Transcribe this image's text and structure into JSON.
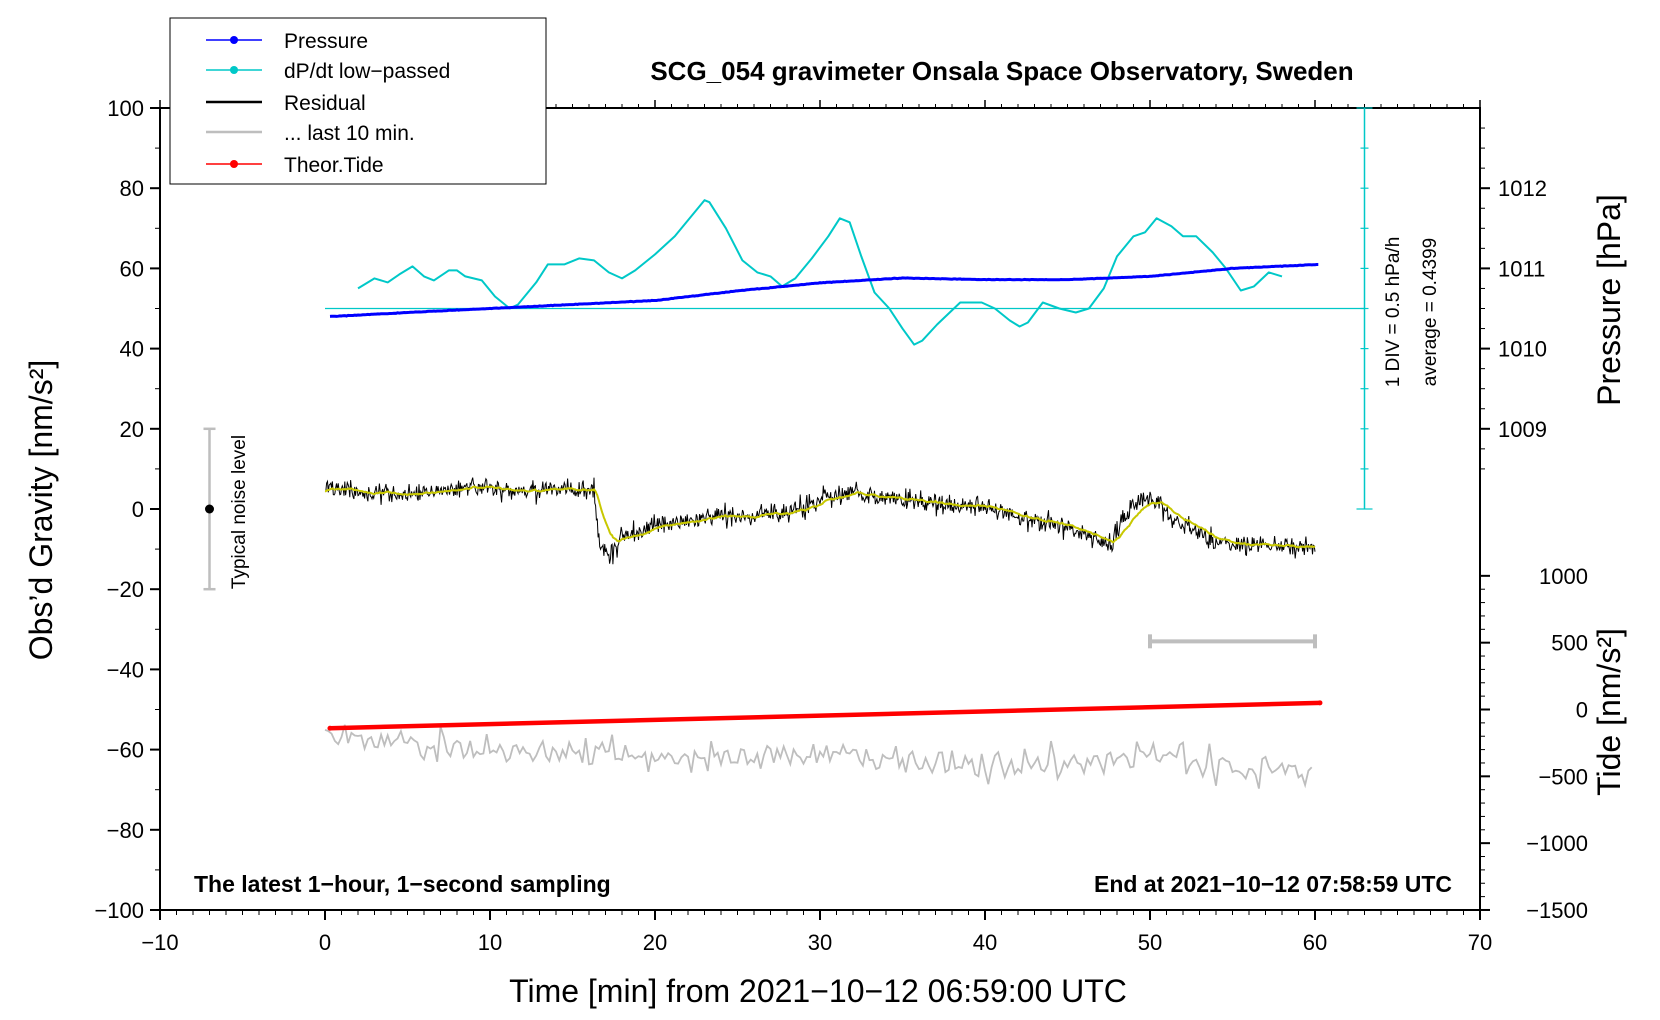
{
  "chart_data": {
    "type": "line",
    "title": "SCG_054 gravimeter Onsala Space Observatory, Sweden",
    "xlabel": "Time [min] from 2021−10−12 06:59:00 UTC",
    "ylabel_left": "Obs’d Gravity [nm/s²]",
    "ylabel_right_top": "Pressure [hPa]",
    "ylabel_right_bottom": "Tide [nm/s²]",
    "xlim": [
      -10,
      70
    ],
    "ylim": [
      -100,
      100
    ],
    "x_ticks": [
      -10,
      0,
      10,
      20,
      30,
      40,
      50,
      60,
      70
    ],
    "x_tick_labels": [
      "−10",
      "0",
      "10",
      "20",
      "30",
      "40",
      "50",
      "60",
      "70"
    ],
    "y_ticks": [
      -100,
      -80,
      -60,
      -40,
      -20,
      0,
      20,
      40,
      60,
      80,
      100
    ],
    "y_tick_labels": [
      "−100",
      "−80",
      "−60",
      "−40",
      "−20",
      "0",
      "20",
      "40",
      "60",
      "80",
      "100"
    ],
    "pressure_axis": {
      "ticks": [
        1009,
        1010,
        1011,
        1012
      ],
      "tick_labels": [
        "1009",
        "1010",
        "1011",
        "1012"
      ],
      "gravity_at_1010": 40,
      "gravity_per_hPa": 20
    },
    "tide_axis": {
      "ticks": [
        -1500,
        -1000,
        -500,
        0,
        500,
        1000
      ],
      "tick_labels": [
        "−1500",
        "−1000",
        "−500",
        "0",
        "500",
        "1000"
      ],
      "gravity_at_0": -50,
      "gravity_per_1000": 33.33
    },
    "legend": [
      {
        "label": "Pressure",
        "color": "#0000ff",
        "marker": true
      },
      {
        "label": "dP/dt low−passed",
        "color": "#00c8c8",
        "marker": true
      },
      {
        "label": "Residual",
        "color": "#000000",
        "marker": false
      },
      {
        "label": "... last 10 min.",
        "color": "#bebebe",
        "marker": false
      },
      {
        "label": "Theor.Tide",
        "color": "#ff0000",
        "marker": true
      }
    ],
    "series": [
      {
        "name": "Pressure",
        "unit": "hPa",
        "color": "#0000ff",
        "x": [
          0.3,
          5,
          10,
          15,
          20,
          25,
          30,
          35,
          40,
          45,
          50,
          55,
          60.3
        ],
        "values": [
          1010.4,
          1010.45,
          1010.5,
          1010.55,
          1010.6,
          1010.72,
          1010.82,
          1010.88,
          1010.86,
          1010.86,
          1010.9,
          1011.0,
          1011.05
        ]
      },
      {
        "name": "dP/dt low−passed",
        "unit": "hPa/h",
        "color": "#00c8c8",
        "x": [
          2,
          3,
          3.8,
          4.5,
          5.3,
          6,
          6.6,
          7.5,
          8,
          8.5,
          9.5,
          10.3,
          11.2,
          11.7,
          12.8,
          13.5,
          14.5,
          15.4,
          16.3,
          17.2,
          18,
          18.8,
          20,
          21.2,
          22,
          23,
          23.3,
          24.3,
          25.3,
          26.2,
          27,
          27.7,
          28.5,
          29.5,
          30.5,
          31.2,
          31.8,
          32.5,
          33.3,
          34.2,
          35,
          35.7,
          36.2,
          37.1,
          38.5,
          39.8,
          40.6,
          41.5,
          42.1,
          42.6,
          43.5,
          44.5,
          45.5,
          46.3,
          47.2,
          48,
          49,
          49.7,
          50.4,
          51.3,
          52,
          52.8,
          53.8,
          54.6,
          55.5,
          56.3,
          57.2,
          58
        ],
        "values": [
          55,
          57.5,
          56.5,
          58.5,
          60.5,
          58,
          57,
          59.5,
          59.5,
          58,
          57,
          53,
          50,
          51,
          56.5,
          61,
          61,
          62.5,
          62,
          59,
          57.5,
          59.5,
          63.5,
          68,
          72,
          77,
          76.5,
          70,
          62,
          59,
          58,
          55.5,
          57.5,
          62.5,
          68,
          72.5,
          71.5,
          63,
          54,
          50,
          45,
          41,
          42,
          46,
          51.5,
          51.5,
          50,
          47,
          45.5,
          46.5,
          51.5,
          50,
          49,
          50,
          55,
          63,
          68,
          69,
          72.5,
          70.5,
          68,
          68,
          64,
          60,
          54.5,
          55.5,
          59,
          58
        ],
        "reference_level": 50,
        "scale_label": "1 DIV = 0.5 hPa/h",
        "average_label": "average = 0.4399"
      },
      {
        "name": "Residual",
        "unit": "nm/s²",
        "color": "#000000",
        "x": [
          0,
          2,
          4,
          6,
          8,
          10,
          12,
          14,
          16.3,
          16.6,
          17.2,
          18,
          19,
          20,
          22,
          24,
          26,
          28,
          30,
          32,
          34,
          36,
          38,
          40,
          42,
          44,
          46,
          47.5,
          48.5,
          49.5,
          50.5,
          51.5,
          52.5,
          54,
          56,
          58,
          60
        ],
        "values": [
          6,
          4,
          4,
          4,
          5,
          5,
          4,
          5,
          5,
          -8,
          -12,
          -7,
          -6,
          -4,
          -3,
          -1,
          -2,
          -1,
          2,
          4,
          3,
          2,
          1,
          1,
          -2,
          -4,
          -6,
          -9,
          -2,
          3,
          1,
          -3,
          -5,
          -8,
          -9,
          -9,
          -10
        ],
        "smoothed_color": "#c8c800"
      },
      {
        "name": "... last 10 min.",
        "unit": "nm/s²",
        "color": "#bebebe",
        "x": [
          0,
          5,
          10,
          15,
          20,
          25,
          30,
          35,
          40,
          45,
          50,
          55,
          60
        ],
        "values": [
          -57,
          -59,
          -60,
          -60,
          -62,
          -62,
          -61,
          -63,
          -64,
          -64,
          -61,
          -65,
          -66
        ],
        "range_bar": [
          50,
          60
        ]
      },
      {
        "name": "Theor.Tide",
        "unit": "nm/s²",
        "color": "#ff0000",
        "x": [
          0.3,
          60.3
        ],
        "values": [
          -140,
          50
        ]
      }
    ],
    "noise_bar": {
      "x": -7,
      "center": 0,
      "range": [
        -20,
        20
      ],
      "label": "Typical noise level"
    },
    "annotations": {
      "bottom_left": "The latest 1−hour, 1−second sampling",
      "bottom_right": "End at 2021−10−12 07:58:59 UTC"
    }
  }
}
